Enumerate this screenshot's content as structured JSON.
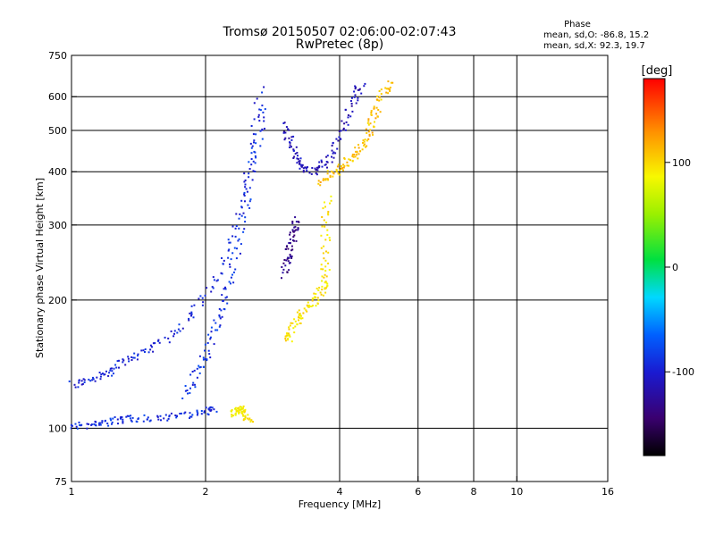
{
  "chart_data": {
    "type": "scatter",
    "title": "Tromsø 20150507 02:06:00-02:07:43",
    "subtitle": "RwPretec (8p)",
    "xlabel": "Frequency [MHz]",
    "ylabel": "Stationary phase Virtual Height [km]",
    "xscale": "log",
    "yscale": "log",
    "xlim": [
      1,
      16
    ],
    "ylim": [
      75,
      750
    ],
    "x_ticks": [
      1,
      2,
      4,
      6,
      8,
      10,
      16
    ],
    "x_tick_labels": [
      "1",
      "2",
      "4",
      "6",
      "8",
      "10",
      "16"
    ],
    "y_ticks": [
      75,
      100,
      200,
      300,
      400,
      500,
      600,
      750
    ],
    "y_tick_labels": [
      "75",
      "100",
      "200",
      "300",
      "400",
      "500",
      "600",
      "750"
    ],
    "grid": true,
    "phase_info": {
      "heading": "Phase",
      "line_o": "mean, sd,O: -86.8, 15.2",
      "line_x": "mean, sd,X:  92.3, 19.7"
    },
    "colorbar": {
      "label": "[deg]",
      "range": [
        -180,
        180
      ],
      "ticks": [
        -100,
        0,
        100
      ],
      "tick_labels": [
        "-100",
        "0",
        "100"
      ],
      "colormap": "rainbow (black-purple-blue-cyan-green-yellow-orange-red)"
    },
    "traces": [
      {
        "mode": "O",
        "phase": -90,
        "points": [
          [
            1.0,
            102
          ],
          [
            1.1,
            102
          ],
          [
            1.2,
            104
          ],
          [
            1.3,
            105
          ],
          [
            1.4,
            106
          ],
          [
            1.6,
            106
          ],
          [
            1.8,
            108
          ],
          [
            2.0,
            110
          ],
          [
            2.1,
            112
          ]
        ]
      },
      {
        "mode": "O",
        "phase": -95,
        "points": [
          [
            1.0,
            127
          ],
          [
            1.1,
            130
          ],
          [
            1.2,
            135
          ],
          [
            1.3,
            143
          ],
          [
            1.4,
            150
          ],
          [
            1.6,
            160
          ],
          [
            1.8,
            180
          ],
          [
            2.0,
            205
          ],
          [
            2.2,
            250
          ],
          [
            2.4,
            330
          ],
          [
            2.55,
            450
          ],
          [
            2.65,
            650
          ]
        ]
      },
      {
        "mode": "O",
        "phase": -88,
        "points": [
          [
            1.8,
            120
          ],
          [
            1.9,
            135
          ],
          [
            2.0,
            150
          ],
          [
            2.1,
            175
          ],
          [
            2.2,
            200
          ],
          [
            2.3,
            240
          ],
          [
            2.4,
            300
          ],
          [
            2.5,
            380
          ],
          [
            2.6,
            470
          ],
          [
            2.7,
            580
          ]
        ]
      },
      {
        "mode": "O",
        "phase": -112,
        "points": [
          [
            3.0,
            520
          ],
          [
            3.1,
            470
          ],
          [
            3.2,
            430
          ],
          [
            3.3,
            410
          ],
          [
            3.5,
            400
          ],
          [
            3.7,
            420
          ],
          [
            3.9,
            460
          ],
          [
            4.1,
            520
          ],
          [
            4.3,
            600
          ],
          [
            4.45,
            650
          ]
        ]
      },
      {
        "mode": "O",
        "phase": -135,
        "points": [
          [
            3.0,
            230
          ],
          [
            3.05,
            250
          ],
          [
            3.1,
            270
          ],
          [
            3.15,
            290
          ],
          [
            3.2,
            310
          ]
        ]
      },
      {
        "mode": "X",
        "phase": 95,
        "points": [
          [
            3.05,
            160
          ],
          [
            3.1,
            170
          ],
          [
            3.2,
            180
          ],
          [
            3.3,
            190
          ],
          [
            3.5,
            200
          ],
          [
            3.6,
            210
          ],
          [
            3.7,
            220
          ],
          [
            3.7,
            250
          ],
          [
            3.7,
            300
          ],
          [
            3.75,
            350
          ]
        ]
      },
      {
        "mode": "X",
        "phase": 110,
        "points": [
          [
            3.6,
            380
          ],
          [
            3.8,
            395
          ],
          [
            4.0,
            410
          ],
          [
            4.2,
            430
          ],
          [
            4.4,
            450
          ],
          [
            4.6,
            480
          ],
          [
            4.7,
            520
          ],
          [
            4.8,
            560
          ],
          [
            5.0,
            620
          ],
          [
            5.2,
            650
          ]
        ]
      },
      {
        "mode": "X",
        "phase": 88,
        "points": [
          [
            2.3,
            108
          ],
          [
            2.35,
            110
          ],
          [
            2.4,
            112
          ],
          [
            2.45,
            108
          ],
          [
            2.5,
            105
          ]
        ]
      }
    ]
  }
}
